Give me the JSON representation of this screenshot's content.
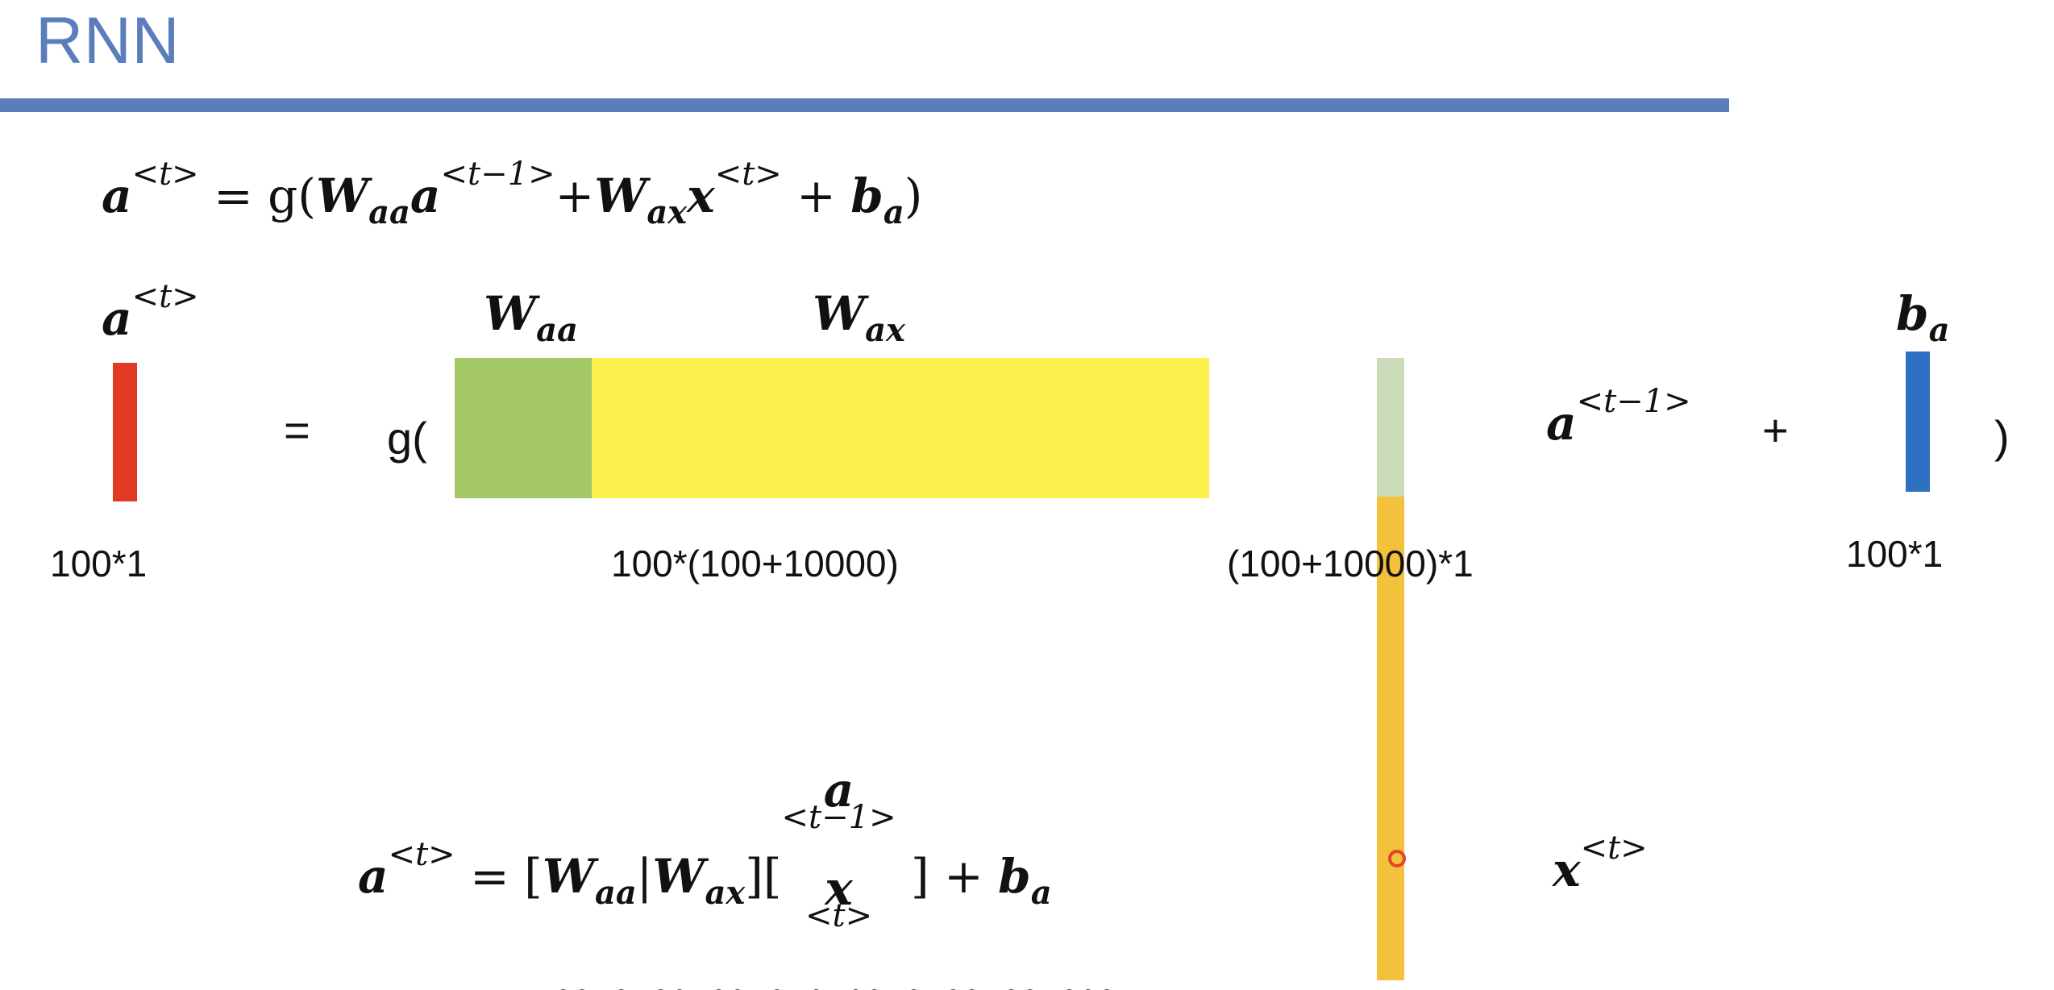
{
  "title": "RNN",
  "colors": {
    "title": "#5a7dbc",
    "a_t_vector": "#e03a22",
    "w_aa": "#a3c865",
    "w_ax": "#fdf04c",
    "a_prev_part": "#c9dbb9",
    "x_t_part": "#f3c13c",
    "b_a_vector": "#2f6fc1"
  },
  "equation1": {
    "lhs": "a",
    "lhs_sup": "<t>",
    "eq": " = g(",
    "w_aa": "W",
    "w_aa_sub": "aa",
    "a_prev": "a",
    "a_prev_sup": "<t−1>",
    "plus1": "+",
    "w_ax": "W",
    "w_ax_sub": "ax",
    "x": "x",
    "x_sup": "<t>",
    "plus2": " + ",
    "b": "b",
    "b_sub": "a",
    "close": ")"
  },
  "diagram": {
    "a_t_label": "a",
    "a_t_label_sup": "<t>",
    "equals": "=",
    "g_open": "g(",
    "w_aa_label": "W",
    "w_aa_label_sub": "aa",
    "w_ax_label": "W",
    "w_ax_label_sub": "ax",
    "a_prev_label": "a",
    "a_prev_label_sup": "<t−1>",
    "plus": "+",
    "b_a_label": "b",
    "b_a_label_sub": "a",
    "close": ")",
    "x_t_label": "x",
    "x_t_label_sup": "<t>",
    "dims": {
      "a_t": "100*1",
      "weight": "100*(100+10000)",
      "concat": "(100+10000)*1",
      "b_a": "100*1"
    }
  },
  "equation2": {
    "lhs": "a",
    "lhs_sup": "<t>",
    "eq_open": " = [",
    "w_aa": "W",
    "w_aa_sub": "aa",
    "bar": "|",
    "w_ax": "W",
    "w_ax_sub": "ax",
    "mid": "][",
    "top": "a",
    "top_sup": "<t−1>",
    "bottom": "x",
    "bottom_sup": "<t>",
    "close": " ] + ",
    "b": "b",
    "b_sub": "a"
  },
  "cut_off_text": "ꞏꞏ·ꞏ ꞏꞏ ꞏꞏ ꞏ ꞏ ꞏꞏ ꞏ ꞏꞏ ꞏꞏ ꞏꞏꞏ"
}
